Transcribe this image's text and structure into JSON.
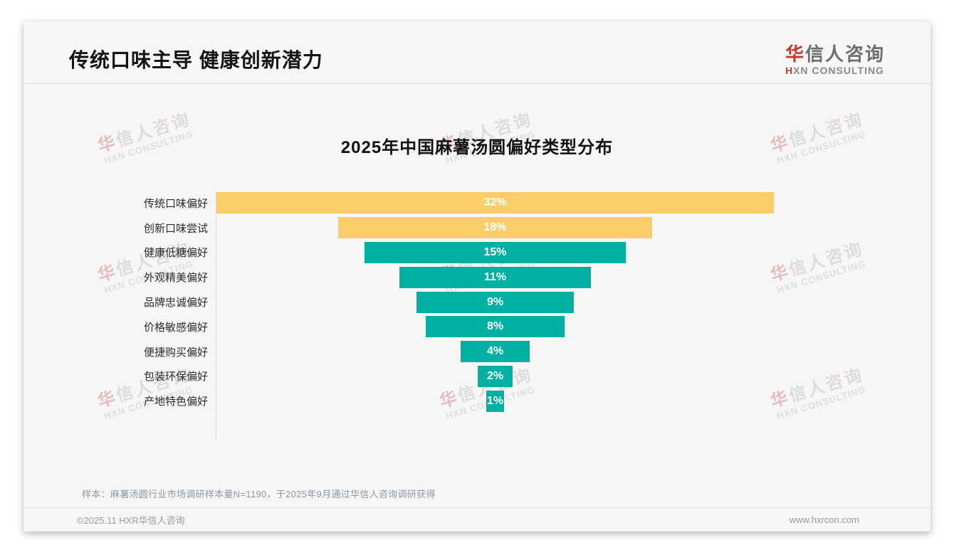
{
  "header": {
    "title": "传统口味主导 健康创新潜力",
    "logo": {
      "cn_first": "华",
      "cn_rest": "信人咨询",
      "en_first": "H",
      "en_rest": "XN CONSULTING"
    }
  },
  "watermark": {
    "cn_first": "华",
    "cn_rest": "信人咨询",
    "en": "HXN CONSULTING"
  },
  "chart_data": {
    "type": "bar",
    "subtype": "horizontal-funnel-centered",
    "title": "2025年中国麻薯汤圆偏好类型分布",
    "categories": [
      "传统口味偏好",
      "创新口味尝试",
      "健康低糖偏好",
      "外观精美偏好",
      "品牌忠诚偏好",
      "价格敏感偏好",
      "便捷购买偏好",
      "包装环保偏好",
      "产地特色偏好"
    ],
    "values": [
      32,
      18,
      15,
      11,
      9,
      8,
      4,
      2,
      1
    ],
    "value_labels": [
      "32%",
      "18%",
      "15%",
      "11%",
      "9%",
      "8%",
      "4%",
      "2%",
      "1%"
    ],
    "bar_colors": [
      "#FACD68",
      "#FACD68",
      "#00B0A2",
      "#00B0A2",
      "#00B0A2",
      "#00B0A2",
      "#00B0A2",
      "#00B0A2",
      "#00B0A2"
    ],
    "max_value": 32,
    "xlabel": "",
    "ylabel": "",
    "legend": null,
    "grid": false
  },
  "note": "样本：麻薯汤圆行业市场调研样本量N=1190，于2025年9月通过华信人咨询调研获得",
  "footer": {
    "copyright": "©2025.11 HXR华信人咨询",
    "website": "www.hxrcon.com"
  },
  "colors": {
    "accent_yellow": "#FACD68",
    "accent_teal": "#00B0A2",
    "logo_red": "#C23B2C",
    "card_bg": "#F6F6F6"
  }
}
